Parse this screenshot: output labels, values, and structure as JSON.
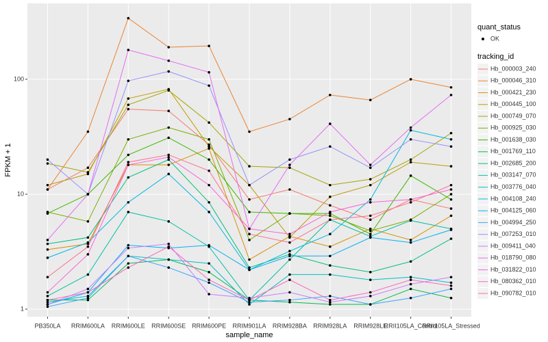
{
  "chart_data": {
    "type": "line",
    "log_y": true,
    "grid": true,
    "x_label": "sample_name",
    "y_label": "FPKM + 1",
    "categories": [
      "PB350LA",
      "RRIM600LA",
      "RRIM600LE",
      "RRIM600SE",
      "RRIM600PE",
      "RRIM901LA",
      "RRIM928BA",
      "RRIM928LA",
      "RRIM928LE",
      "RRII105LA_Control",
      "RRII105LA_Stressed"
    ],
    "ylim": [
      0.86,
      457
    ],
    "yticks": [
      1,
      10,
      100
    ],
    "point_legend_title": "quant_status",
    "point_legend_label": "OK",
    "point_color": "#000000",
    "legend_title": "tracking_id",
    "legend_position": "right",
    "series": [
      {
        "name": "Hb_000003_240",
        "color": "#F8766D",
        "values": [
          11,
          17,
          55,
          53,
          27,
          9,
          11,
          8,
          6,
          9,
          7.5
        ]
      },
      {
        "name": "Hb_000046_310",
        "color": "#EA8331",
        "values": [
          11,
          35,
          340,
          190,
          195,
          35,
          45,
          73,
          66,
          100,
          85
        ]
      },
      {
        "name": "Hb_000421_230",
        "color": "#D89000",
        "values": [
          3.3,
          3.7,
          18,
          18,
          25,
          2.7,
          4.3,
          3.5,
          5,
          4,
          6.5
        ]
      },
      {
        "name": "Hb_000445_100",
        "color": "#C09B00",
        "values": [
          12,
          15,
          68,
          82,
          26,
          12,
          4.2,
          9.5,
          12,
          19,
          17.5
        ]
      },
      {
        "name": "Hb_000749_070",
        "color": "#A3A500",
        "values": [
          18.5,
          15.5,
          60,
          80,
          42,
          17.5,
          17,
          12,
          13.5,
          20,
          34
        ]
      },
      {
        "name": "Hb_000925_030",
        "color": "#7CAE00",
        "values": [
          7,
          5.8,
          30,
          38,
          30,
          4,
          6.8,
          6.5,
          4.8,
          6,
          10
        ]
      },
      {
        "name": "Hb_001638_030",
        "color": "#39B600",
        "values": [
          6.8,
          10,
          22,
          31,
          20,
          7,
          6.8,
          6.8,
          4.5,
          14.5,
          9
        ]
      },
      {
        "name": "Hb_001769_110",
        "color": "#00BB4E",
        "values": [
          1.2,
          1.2,
          2.5,
          2.7,
          2.1,
          1.2,
          1.15,
          1.1,
          1.1,
          1.5,
          1.25
        ]
      },
      {
        "name": "Hb_002685_200",
        "color": "#00BF7D",
        "values": [
          3.7,
          4.2,
          14,
          20,
          8.5,
          2.3,
          3,
          2.4,
          2.1,
          2.6,
          4.1
        ]
      },
      {
        "name": "Hb_003147_070",
        "color": "#00C1A3",
        "values": [
          1.3,
          2,
          7,
          5.8,
          3.5,
          1.2,
          2.7,
          6,
          4.3,
          5.9,
          5
        ]
      },
      {
        "name": "Hb_003776_040",
        "color": "#00BFC4",
        "values": [
          1.15,
          1.3,
          2.9,
          2.7,
          2.5,
          1.1,
          2,
          2,
          1.8,
          1.9,
          1.7
        ]
      },
      {
        "name": "Hb_004108_240",
        "color": "#00BAE0",
        "values": [
          2.8,
          3.8,
          8.5,
          15,
          7,
          2.2,
          3.2,
          4.5,
          9,
          36,
          30
        ]
      },
      {
        "name": "Hb_004125_060",
        "color": "#00B0F6",
        "values": [
          1.1,
          1.4,
          3.6,
          3.4,
          3.6,
          2.2,
          2.9,
          2.9,
          4.2,
          3.8,
          4.9
        ]
      },
      {
        "name": "Hb_004994_250",
        "color": "#35A2FF",
        "values": [
          1.05,
          1.25,
          2.9,
          2.3,
          1.7,
          1.15,
          1.2,
          1.3,
          1.1,
          1.25,
          1.5
        ]
      },
      {
        "name": "Hb_007253_010",
        "color": "#9590FF",
        "values": [
          20,
          10,
          97,
          117,
          88,
          12,
          20,
          26,
          17,
          30,
          26
        ]
      },
      {
        "name": "Hb_009411_040",
        "color": "#C77CFF",
        "values": [
          1.1,
          1.5,
          3.4,
          3.7,
          1.35,
          1.25,
          1.4,
          1.15,
          1.3,
          1.65,
          1.9
        ]
      },
      {
        "name": "Hb_018790_080",
        "color": "#E76BF3",
        "values": [
          4,
          10,
          180,
          145,
          115,
          5,
          18,
          41,
          18,
          38,
          73
        ]
      },
      {
        "name": "Hb_031822_010",
        "color": "#FA62DB",
        "values": [
          1.4,
          3,
          18,
          21,
          12,
          5,
          4.5,
          7,
          8.5,
          9,
          11
        ]
      },
      {
        "name": "Hb_080362_010",
        "color": "#FF62BC",
        "values": [
          1.2,
          1.4,
          2.3,
          3.5,
          1.8,
          1.2,
          1.8,
          1.2,
          1.4,
          1.8,
          1.6
        ]
      },
      {
        "name": "Hb_090782_010",
        "color": "#FF6C91",
        "values": [
          1.9,
          3.5,
          19,
          22,
          16,
          4.5,
          3.8,
          6,
          6.5,
          8.5,
          12
        ]
      }
    ]
  }
}
